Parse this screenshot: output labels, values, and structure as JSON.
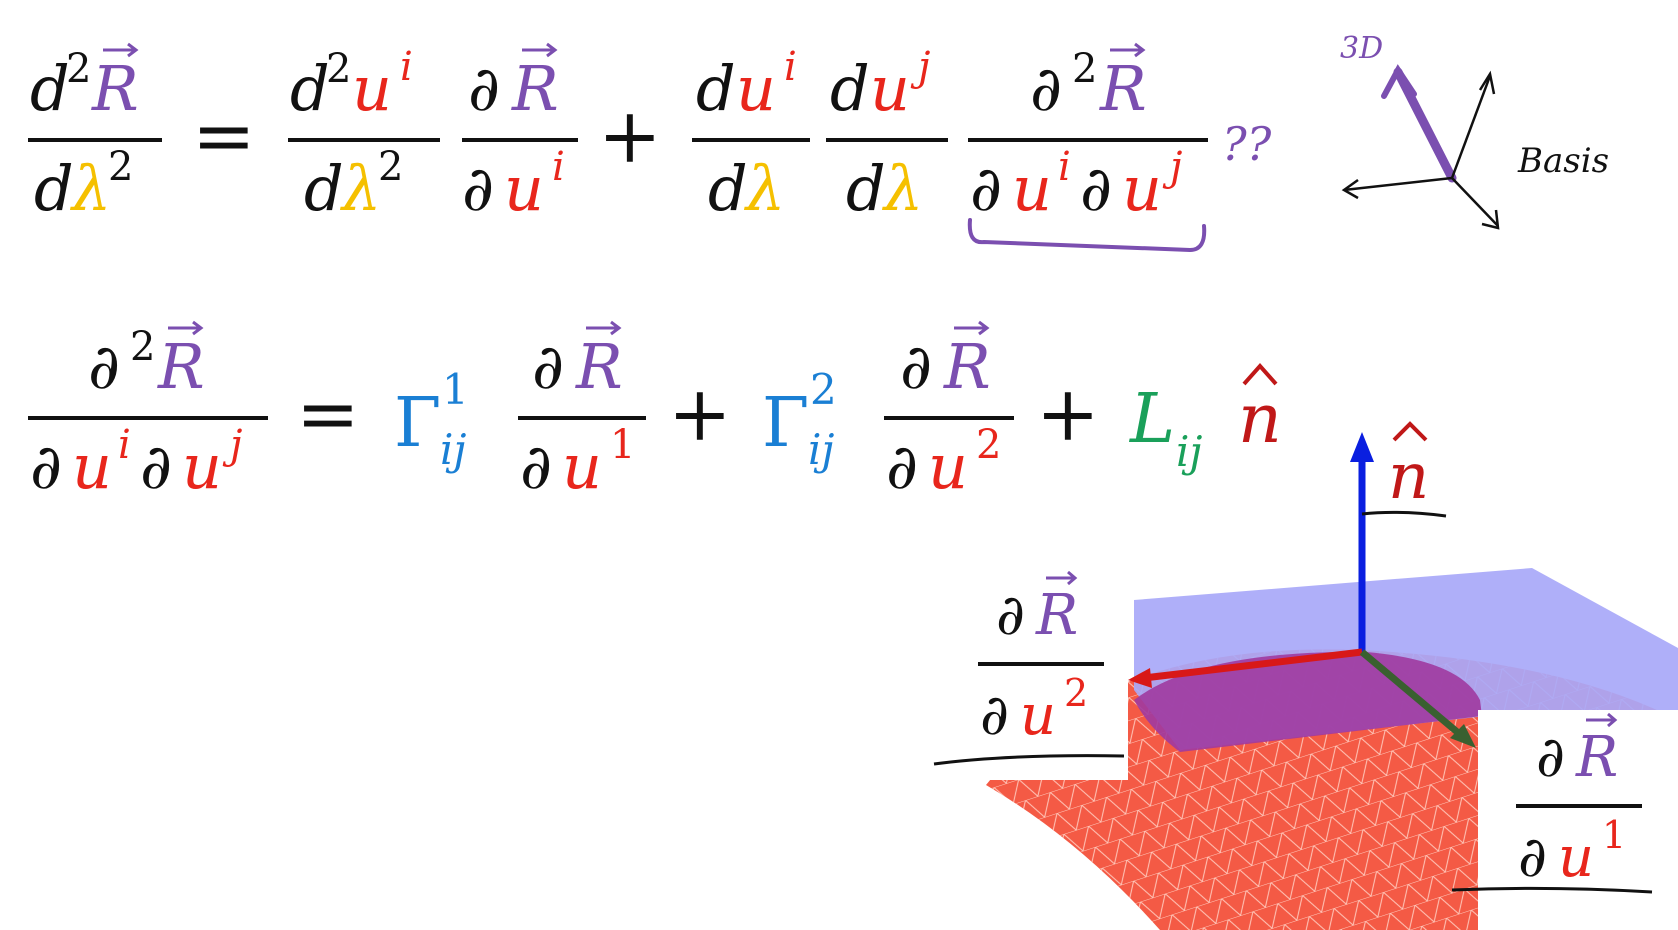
{
  "colors": {
    "black": "#111111",
    "purple": "#7b4fb0",
    "red": "#e8261c",
    "yellow": "#f5c000",
    "blue": "#1a7fd4",
    "green": "#1aa05a",
    "normal_arrow": "#0a1fe0",
    "tangent_plane": "#a8a8f8",
    "surface": "#f45a45",
    "overlap": "#a03aa0",
    "u1_arrow": "#3a6030",
    "u2_arrow": "#d81818"
  },
  "symbols": {
    "d": "d",
    "partial": "∂",
    "R": "R",
    "u": "u",
    "lambda": "λ",
    "Gamma": "Γ",
    "L": "L",
    "n": "n",
    "i": "i",
    "j": "j",
    "ij": "ij",
    "one": "1",
    "two": "2",
    "equals": "=",
    "plus": "+",
    "vec_arrow": "⃗",
    "hat": "^"
  },
  "annotations": {
    "question": "??",
    "label_3d": "3D",
    "label_basis": "Basis"
  },
  "icons": [
    "basis-sketch-icon",
    "surface-figure-icon"
  ]
}
